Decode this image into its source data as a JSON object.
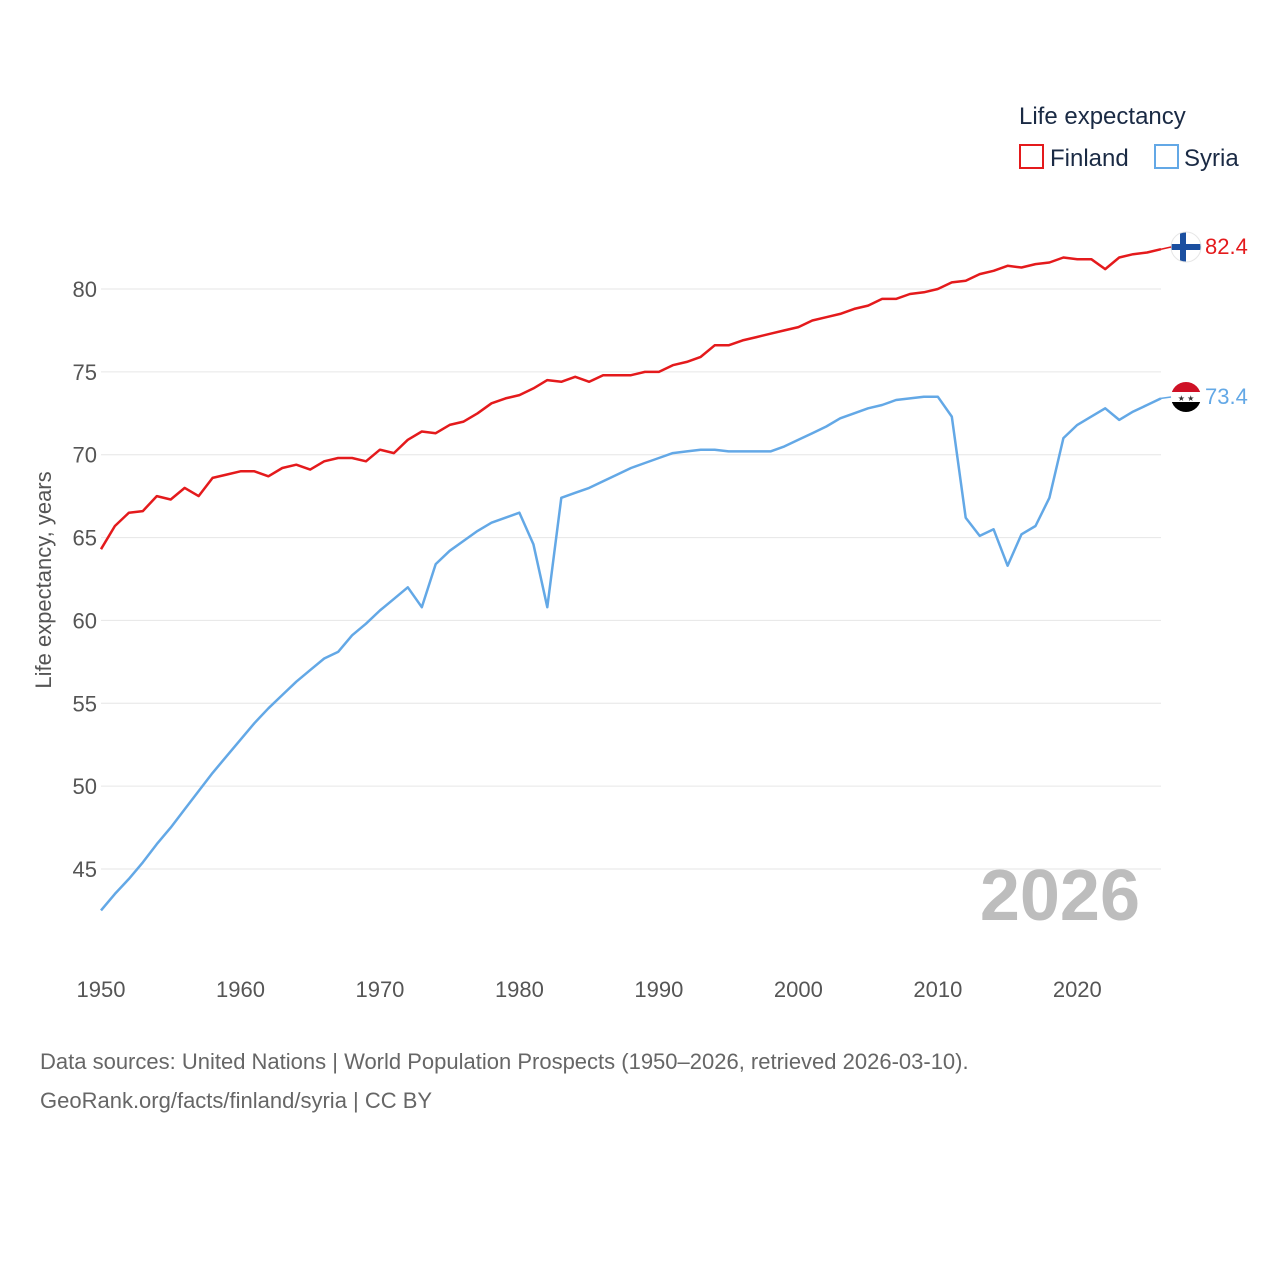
{
  "chart_data": {
    "type": "line",
    "legend_title": "Life expectancy",
    "ylabel": "Life expectancy, years",
    "xlim": [
      1950,
      2026
    ],
    "ylim": [
      41,
      84.5
    ],
    "yticks": [
      45,
      50,
      55,
      60,
      65,
      70,
      75,
      80
    ],
    "xticks": [
      1950,
      1960,
      1970,
      1980,
      1990,
      2000,
      2010,
      2020
    ],
    "year_label": "2026",
    "x": [
      1950,
      1951,
      1952,
      1953,
      1954,
      1955,
      1956,
      1957,
      1958,
      1959,
      1960,
      1961,
      1962,
      1963,
      1964,
      1965,
      1966,
      1967,
      1968,
      1969,
      1970,
      1971,
      1972,
      1973,
      1974,
      1975,
      1976,
      1977,
      1978,
      1979,
      1980,
      1981,
      1982,
      1983,
      1984,
      1985,
      1986,
      1987,
      1988,
      1989,
      1990,
      1991,
      1992,
      1993,
      1994,
      1995,
      1996,
      1997,
      1998,
      1999,
      2000,
      2001,
      2002,
      2003,
      2004,
      2005,
      2006,
      2007,
      2008,
      2009,
      2010,
      2011,
      2012,
      2013,
      2014,
      2015,
      2016,
      2017,
      2018,
      2019,
      2020,
      2021,
      2022,
      2023,
      2024,
      2025,
      2026
    ],
    "series": [
      {
        "name": "Finland",
        "color": "#e41a1c",
        "end_label": "82.4",
        "values": [
          64.3,
          65.7,
          66.5,
          66.6,
          67.5,
          67.3,
          68.0,
          67.5,
          68.6,
          68.8,
          69.0,
          69.0,
          68.7,
          69.2,
          69.4,
          69.1,
          69.6,
          69.8,
          69.8,
          69.6,
          70.3,
          70.1,
          70.9,
          71.4,
          71.3,
          71.8,
          72.0,
          72.5,
          73.1,
          73.4,
          73.6,
          74.0,
          74.5,
          74.4,
          74.7,
          74.4,
          74.8,
          74.8,
          74.8,
          75.0,
          75.0,
          75.4,
          75.6,
          75.9,
          76.6,
          76.6,
          76.9,
          77.1,
          77.3,
          77.5,
          77.7,
          78.1,
          78.3,
          78.5,
          78.8,
          79.0,
          79.4,
          79.4,
          79.7,
          79.8,
          80.0,
          80.4,
          80.5,
          80.9,
          81.1,
          81.4,
          81.3,
          81.5,
          81.6,
          81.9,
          81.8,
          81.8,
          81.2,
          81.9,
          82.1,
          82.2,
          82.4
        ]
      },
      {
        "name": "Syria",
        "color": "#63a8e6",
        "end_label": "73.4",
        "values": [
          42.5,
          43.5,
          44.4,
          45.4,
          46.5,
          47.5,
          48.6,
          49.7,
          50.8,
          51.8,
          52.8,
          53.8,
          54.7,
          55.5,
          56.3,
          57.0,
          57.7,
          58.1,
          59.1,
          59.8,
          60.6,
          61.3,
          62.0,
          60.8,
          63.4,
          64.2,
          64.8,
          65.4,
          65.9,
          66.2,
          66.5,
          64.6,
          60.8,
          67.4,
          67.7,
          68.0,
          68.4,
          68.8,
          69.2,
          69.5,
          69.8,
          70.1,
          70.2,
          70.3,
          70.3,
          70.2,
          70.2,
          70.2,
          70.2,
          70.5,
          70.9,
          71.3,
          71.7,
          72.2,
          72.5,
          72.8,
          73.0,
          73.3,
          73.4,
          73.5,
          73.5,
          72.3,
          66.2,
          65.1,
          65.5,
          63.3,
          65.2,
          65.7,
          67.4,
          71.0,
          71.8,
          72.3,
          72.8,
          72.1,
          72.6,
          73.0,
          73.4
        ]
      }
    ]
  },
  "footer": {
    "line1": "Data sources: United Nations | World Population Prospects (1950–2026, retrieved 2026-03-10).",
    "line2": "GeoRank.org/facts/finland/syria | CC BY"
  }
}
